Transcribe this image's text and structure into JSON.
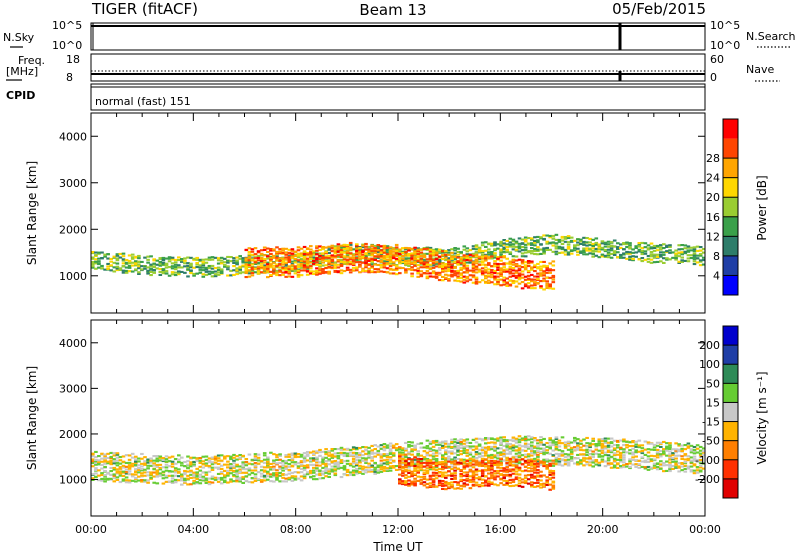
{
  "header": {
    "radar": "TIGER (fitACF)",
    "beam": "Beam 13",
    "date": "05/Feb/2015"
  },
  "strip_panels": {
    "nsky": {
      "label": "N.Sky",
      "tick_top": "10^5",
      "tick_bottom": "10^0"
    },
    "nsearch": {
      "label": "N.Search",
      "tick_top": "10^5",
      "tick_bottom": "10^0"
    },
    "freq": {
      "label_line1": "Freq.",
      "label_line2": "[MHz]",
      "tick_top": "18",
      "tick_bottom": "8"
    },
    "nave": {
      "label": "Nave",
      "tick_top": "60",
      "tick_bottom": "0"
    },
    "cpid": {
      "label": "CPID",
      "value": "normal (fast) 151"
    }
  },
  "chart_data": [
    {
      "type": "heatmap",
      "name": "power",
      "ylabel": "Slant Range [km]",
      "ylim": [
        200,
        4500
      ],
      "yticks": [
        "1000",
        "2000",
        "3000",
        "4000"
      ],
      "xlim": [
        "00:00",
        "24:00"
      ],
      "colorbar": {
        "label": "Power [dB]",
        "range": [
          0,
          32
        ],
        "ticks": [
          "4",
          "8",
          "12",
          "16",
          "20",
          "24",
          "28"
        ],
        "colors": [
          "#0000ff",
          "#1f3ea6",
          "#2e7d6a",
          "#3aa04a",
          "#9acd32",
          "#ffd700",
          "#ffa500",
          "#ff4500",
          "#ff0000"
        ]
      },
      "bands": [
        {
          "x": [
            0,
            2,
            4,
            6,
            8,
            10,
            12,
            14,
            16,
            18,
            20,
            22,
            24
          ],
          "center": [
            1350,
            1250,
            1200,
            1250,
            1300,
            1500,
            1450,
            1400,
            1600,
            1700,
            1600,
            1500,
            1450
          ],
          "width": 200,
          "level": 14
        },
        {
          "x": [
            6,
            8,
            10,
            12,
            14,
            16,
            18
          ],
          "center": [
            1300,
            1300,
            1400,
            1350,
            1200,
            1100,
            1000
          ],
          "width": 300,
          "level": 24
        }
      ]
    },
    {
      "type": "heatmap",
      "name": "velocity",
      "ylabel": "Slant Range [km]",
      "ylim": [
        200,
        4500
      ],
      "yticks": [
        "1000",
        "2000",
        "3000",
        "4000"
      ],
      "xlim": [
        "00:00",
        "24:00"
      ],
      "xticks": [
        "00:00",
        "04:00",
        "08:00",
        "12:00",
        "16:00",
        "20:00",
        "00:00"
      ],
      "xlabel": "Time UT",
      "colorbar": {
        "label": "Velocity [m s⁻¹]",
        "range": [
          -250,
          250
        ],
        "ticks": [
          "200",
          "100",
          "50",
          "15",
          "-15",
          "-50",
          "-100",
          "-200"
        ],
        "colors": [
          "#0000cd",
          "#1f3ea6",
          "#2e8b57",
          "#66cc33",
          "#c8c8c8",
          "#ffb300",
          "#ff7f00",
          "#ff3000",
          "#e00000"
        ]
      },
      "bands": [
        {
          "x": [
            0,
            4,
            8,
            12,
            16,
            20,
            24
          ],
          "center": [
            1300,
            1200,
            1300,
            1500,
            1650,
            1600,
            1450
          ],
          "width": 300,
          "level": 0
        },
        {
          "x": [
            12,
            14,
            16,
            18
          ],
          "center": [
            1200,
            1100,
            1200,
            1100
          ],
          "width": 300,
          "level": -120
        }
      ]
    }
  ]
}
